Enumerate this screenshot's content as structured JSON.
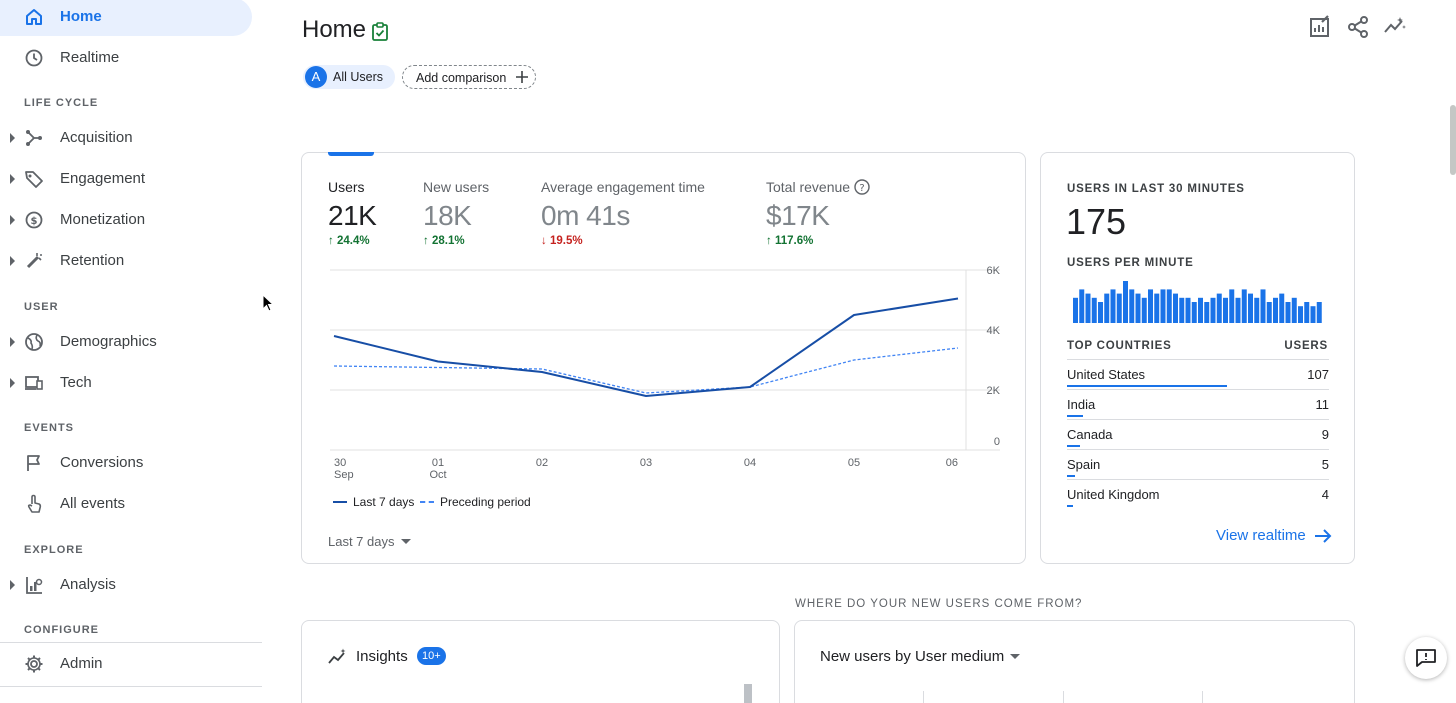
{
  "sidebar": {
    "items": {
      "home": "Home",
      "realtime": "Realtime",
      "acquisition": "Acquisition",
      "engagement": "Engagement",
      "monetization": "Monetization",
      "retention": "Retention",
      "demographics": "Demographics",
      "tech": "Tech",
      "conversions": "Conversions",
      "all_events": "All events",
      "analysis": "Analysis",
      "admin": "Admin"
    },
    "sections": {
      "life_cycle": "LIFE CYCLE",
      "user": "USER",
      "events": "EVENTS",
      "explore": "EXPLORE",
      "configure": "CONFIGURE"
    },
    "active": "Home"
  },
  "header": {
    "title": "Home",
    "chip_all_users": "All Users",
    "chip_avatar": "A",
    "chip_add": "Add comparison"
  },
  "overview": {
    "metrics": [
      {
        "label": "Users",
        "value": "21K",
        "delta": "24.4%",
        "direction": "up"
      },
      {
        "label": "New users",
        "value": "18K",
        "delta": "28.1%",
        "direction": "up"
      },
      {
        "label": "Average engagement time",
        "value": "0m 41s",
        "delta": "19.5%",
        "direction": "down"
      },
      {
        "label": "Total revenue",
        "value": "$17K",
        "delta": "117.6%",
        "direction": "up"
      }
    ],
    "date_range": "Last 7 days"
  },
  "chart_data": {
    "type": "line",
    "x": [
      "30",
      "01",
      "02",
      "03",
      "04",
      "05",
      "06"
    ],
    "x_sublabels": [
      "Sep",
      "Oct",
      "",
      "",
      "",
      "",
      ""
    ],
    "series": [
      {
        "name": "Last 7 days",
        "values": [
          3800,
          2950,
          2600,
          1800,
          2100,
          4500,
          5050
        ],
        "style": "solid",
        "color": "#174ea6"
      },
      {
        "name": "Preceding period",
        "values": [
          2800,
          2750,
          2700,
          1900,
          2100,
          3000,
          3400
        ],
        "style": "dashed",
        "color": "#4285f4"
      }
    ],
    "y_ticks": [
      {
        "value": 6000,
        "label": "6K"
      },
      {
        "value": 4000,
        "label": "4K"
      },
      {
        "value": 2000,
        "label": "2K"
      },
      {
        "value": 0,
        "label": "0"
      }
    ],
    "ylim": [
      0,
      6000
    ],
    "grid": true,
    "legend_position": "bottom-left"
  },
  "realtime": {
    "title": "USERS IN LAST 30 MINUTES",
    "count": "175",
    "per_minute_label": "USERS PER MINUTE",
    "per_minute": [
      6,
      8,
      7,
      6,
      5,
      7,
      8,
      7,
      10,
      8,
      7,
      6,
      8,
      7,
      8,
      8,
      7,
      6,
      6,
      5,
      6,
      5,
      6,
      7,
      6,
      8,
      6,
      8,
      7,
      6,
      8,
      5,
      6,
      7,
      5,
      6,
      4,
      5,
      4,
      5,
      3
    ],
    "per_minute_ymax": 10,
    "countries_header": "TOP COUNTRIES",
    "users_header": "USERS",
    "countries": [
      {
        "name": "United States",
        "users": "107",
        "share": 1.0
      },
      {
        "name": "India",
        "users": "11",
        "share": 0.103
      },
      {
        "name": "Canada",
        "users": "9",
        "share": 0.084
      },
      {
        "name": "Spain",
        "users": "5",
        "share": 0.047
      },
      {
        "name": "United Kingdom",
        "users": "4",
        "share": 0.037
      }
    ],
    "view_link": "View realtime"
  },
  "new_users_section": {
    "heading": "WHERE DO YOUR NEW USERS COME FROM?",
    "selector": "New users by User medium"
  },
  "insights": {
    "title": "Insights",
    "badge": "10+"
  },
  "colors": {
    "accent": "#1a73e8",
    "active_nav_bg": "#e8f0fe",
    "positive": "#137333",
    "negative": "#c5221f"
  }
}
